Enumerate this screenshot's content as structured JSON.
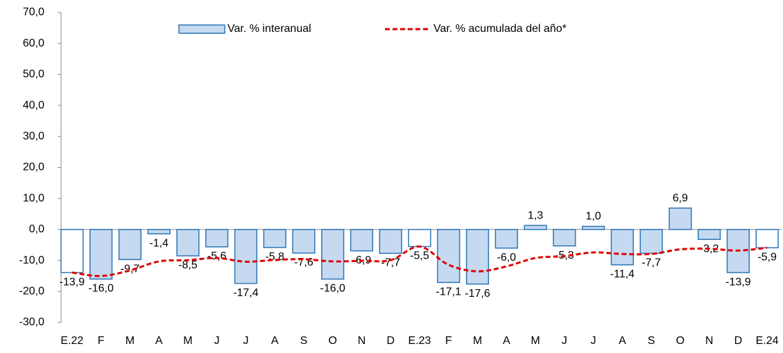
{
  "chart_data": {
    "type": "bar-line",
    "categories": [
      "E.22",
      "F",
      "M",
      "A",
      "M",
      "J",
      "J",
      "A",
      "S",
      "O",
      "N",
      "D",
      "E.23",
      "F",
      "M",
      "A",
      "M",
      "J",
      "J",
      "A",
      "S",
      "O",
      "N",
      "D",
      "E.24"
    ],
    "series": [
      {
        "name": "Var. % interanual",
        "type": "bar",
        "color": "#c5d9f1",
        "stroke": "#2e75b6",
        "colors": [
          "#ffffff",
          "#c5d9f1",
          "#c5d9f1",
          "#c5d9f1",
          "#c5d9f1",
          "#c5d9f1",
          "#c5d9f1",
          "#c5d9f1",
          "#c5d9f1",
          "#c5d9f1",
          "#c5d9f1",
          "#c5d9f1",
          "#ffffff",
          "#c5d9f1",
          "#c5d9f1",
          "#c5d9f1",
          "#c5d9f1",
          "#c5d9f1",
          "#c5d9f1",
          "#c5d9f1",
          "#c5d9f1",
          "#c5d9f1",
          "#c5d9f1",
          "#c5d9f1",
          "#ffffff"
        ],
        "values": [
          -13.9,
          -16.0,
          -9.7,
          -1.4,
          -8.5,
          -5.6,
          -17.4,
          -5.8,
          -7.6,
          -16.0,
          -6.9,
          -7.7,
          -5.5,
          -17.1,
          -17.6,
          -6.0,
          1.3,
          -5.3,
          1.0,
          -11.4,
          -7.7,
          6.9,
          -3.2,
          -13.9,
          -5.9
        ],
        "value_labels": [
          "-13,9",
          "-16,0",
          "-9,7",
          "-1,4",
          "-8,5",
          "-5,6",
          "-17,4",
          "-5,8",
          "-7,6",
          "-16,0",
          "-6,9",
          "-7,7",
          "-5,5",
          "-17,1",
          "-17,6",
          "-6,0",
          "1,3",
          "-5,3",
          "1,0",
          "-11,4",
          "-7,7",
          "6,9",
          "-3,2",
          "-13,9",
          "-5,9"
        ]
      },
      {
        "name": "Var. % acumulada del año*",
        "type": "line",
        "color": "#e00000",
        "values": [
          -13.9,
          -15.0,
          -13.2,
          -10.3,
          -9.9,
          -9.2,
          -10.4,
          -9.8,
          -9.6,
          -10.3,
          -10.1,
          -9.9,
          -5.5,
          -11.4,
          -13.5,
          -11.9,
          -9.2,
          -8.6,
          -7.4,
          -7.9,
          -7.9,
          -6.4,
          -6.2,
          -6.8,
          -5.9
        ]
      }
    ],
    "ylim": [
      -30,
      70
    ],
    "yticks": [
      {
        "value": -30,
        "label": "-30,0"
      },
      {
        "value": -20,
        "label": "-20,0"
      },
      {
        "value": -10,
        "label": "-10,0"
      },
      {
        "value": 0,
        "label": "0,0"
      },
      {
        "value": 10,
        "label": "10,0"
      },
      {
        "value": 20,
        "label": "20,0"
      },
      {
        "value": 30,
        "label": "30,0"
      },
      {
        "value": 40,
        "label": "40,0"
      },
      {
        "value": 50,
        "label": "50,0"
      },
      {
        "value": 60,
        "label": "60,0"
      },
      {
        "value": 70,
        "label": "70,0"
      }
    ],
    "legend": "top",
    "grid": false
  }
}
